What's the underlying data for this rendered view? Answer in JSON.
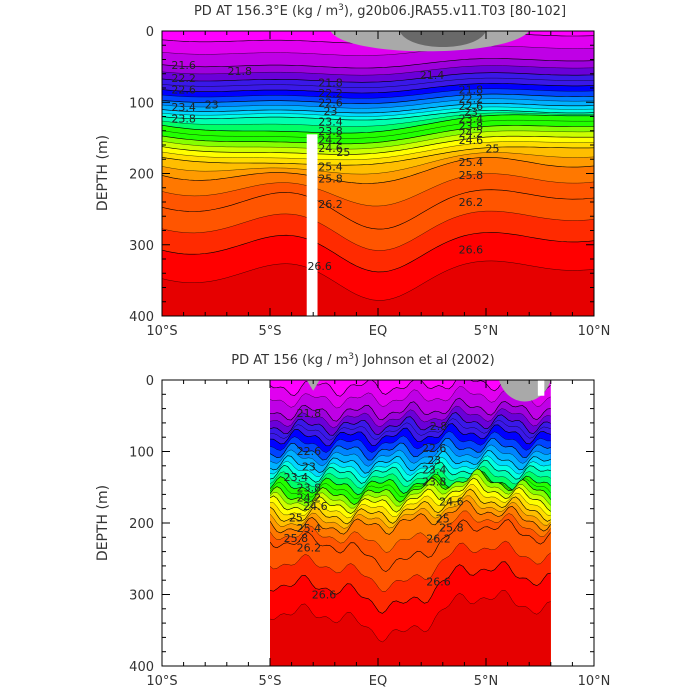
{
  "chart_data": [
    {
      "type": "heatmap",
      "title_main": "PD AT 156.3°E (kg / m",
      "title_sup": "3",
      "title_rest": "), g20b06.JRA55.v11.T03 [80-102]",
      "ylabel": "DEPTH (m)",
      "x_ticks": [
        "10°S",
        "5°S",
        "EQ",
        "5°N",
        "10°N"
      ],
      "y_ticks": [
        "0",
        "100",
        "200",
        "300",
        "400"
      ],
      "x_range": [
        -10,
        10
      ],
      "y_range": [
        0,
        400
      ],
      "y_inverted": true,
      "data_lat_range": [
        -10,
        10
      ],
      "masked_column_lat": [
        -3.3,
        -2.8
      ],
      "masked_column_depth_start": 145,
      "isopycnal_depths": [
        {
          "sigma": 21.4,
          "depth": 10
        },
        {
          "sigma": 21.8,
          "depth": 45
        },
        {
          "sigma": 22.2,
          "depth": 65
        },
        {
          "sigma": 22.6,
          "depth": 80
        },
        {
          "sigma": 23.0,
          "depth": 95
        },
        {
          "sigma": 23.4,
          "depth": 108
        },
        {
          "sigma": 23.8,
          "depth": 118
        },
        {
          "sigma": 24.2,
          "depth": 130
        },
        {
          "sigma": 24.6,
          "depth": 145
        },
        {
          "sigma": 25.0,
          "depth": 160
        },
        {
          "sigma": 25.4,
          "depth": 175
        },
        {
          "sigma": 25.8,
          "depth": 195
        },
        {
          "sigma": 26.2,
          "depth": 240
        },
        {
          "sigma": 26.6,
          "depth": 300
        }
      ],
      "contour_labels": [
        {
          "text": "21.4",
          "lat": 2.5,
          "depth": 62
        },
        {
          "text": "21.6",
          "lat": -9.0,
          "depth": 48
        },
        {
          "text": "21.8",
          "lat": -6.4,
          "depth": 56
        },
        {
          "text": "21.8",
          "lat": -2.2,
          "depth": 72
        },
        {
          "text": "22.2",
          "lat": -9.0,
          "depth": 66
        },
        {
          "text": "22.2",
          "lat": -2.2,
          "depth": 87
        },
        {
          "text": "22.6",
          "lat": -9.0,
          "depth": 82
        },
        {
          "text": "22.6",
          "lat": -2.2,
          "depth": 100
        },
        {
          "text": "23",
          "lat": -7.7,
          "depth": 103
        },
        {
          "text": "23",
          "lat": -2.2,
          "depth": 112
        },
        {
          "text": "23.4",
          "lat": -9.0,
          "depth": 107
        },
        {
          "text": "23.4",
          "lat": -2.2,
          "depth": 127
        },
        {
          "text": "23.8",
          "lat": -9.0,
          "depth": 123
        },
        {
          "text": "23.8",
          "lat": -2.2,
          "depth": 140
        },
        {
          "text": "24.2",
          "lat": -2.2,
          "depth": 152
        },
        {
          "text": "24.6",
          "lat": -2.2,
          "depth": 164
        },
        {
          "text": "25",
          "lat": -1.6,
          "depth": 170
        },
        {
          "text": "25.4",
          "lat": -2.2,
          "depth": 190
        },
        {
          "text": "25.8",
          "lat": -2.2,
          "depth": 207
        },
        {
          "text": "26.2",
          "lat": -2.2,
          "depth": 243
        },
        {
          "text": "26.6",
          "lat": -2.7,
          "depth": 330
        },
        {
          "text": "21.8",
          "lat": 4.3,
          "depth": 82
        },
        {
          "text": "22.2",
          "lat": 4.3,
          "depth": 95
        },
        {
          "text": "22.6",
          "lat": 4.3,
          "depth": 105
        },
        {
          "text": "23",
          "lat": 4.3,
          "depth": 114
        },
        {
          "text": "23.4",
          "lat": 4.3,
          "depth": 123
        },
        {
          "text": "23.8",
          "lat": 4.3,
          "depth": 133
        },
        {
          "text": "24.2",
          "lat": 4.3,
          "depth": 143
        },
        {
          "text": "24.6",
          "lat": 4.3,
          "depth": 153
        },
        {
          "text": "25",
          "lat": 5.3,
          "depth": 165
        },
        {
          "text": "25.4",
          "lat": 4.3,
          "depth": 184
        },
        {
          "text": "25.8",
          "lat": 4.3,
          "depth": 202
        },
        {
          "text": "26.2",
          "lat": 4.3,
          "depth": 240
        },
        {
          "text": "26.6",
          "lat": 4.3,
          "depth": 307
        }
      ]
    },
    {
      "type": "heatmap",
      "title_main": "PD AT 156 (kg / m",
      "title_sup": "3",
      "title_rest": ") Johnson et al (2002)",
      "ylabel": "DEPTH (m)",
      "x_ticks": [
        "10°S",
        "5°S",
        "EQ",
        "5°N",
        "10°N"
      ],
      "y_ticks": [
        "0",
        "100",
        "200",
        "300",
        "400"
      ],
      "x_range": [
        -10,
        10
      ],
      "y_range": [
        0,
        400
      ],
      "y_inverted": true,
      "data_lat_range": [
        -5,
        8
      ],
      "isopycnal_depths": [
        {
          "sigma": 21.4,
          "depth": 10
        },
        {
          "sigma": 21.8,
          "depth": 45
        },
        {
          "sigma": 22.2,
          "depth": 65
        },
        {
          "sigma": 22.6,
          "depth": 80
        },
        {
          "sigma": 23.0,
          "depth": 100
        },
        {
          "sigma": 23.4,
          "depth": 118
        },
        {
          "sigma": 23.8,
          "depth": 132
        },
        {
          "sigma": 24.2,
          "depth": 148
        },
        {
          "sigma": 24.6,
          "depth": 162
        },
        {
          "sigma": 25.0,
          "depth": 175
        },
        {
          "sigma": 25.4,
          "depth": 190
        },
        {
          "sigma": 25.8,
          "depth": 205
        },
        {
          "sigma": 26.2,
          "depth": 225
        },
        {
          "sigma": 26.6,
          "depth": 285
        }
      ],
      "contour_labels": [
        {
          "text": "21.8",
          "lat": -3.2,
          "depth": 46
        },
        {
          "text": "22.6",
          "lat": -3.2,
          "depth": 99
        },
        {
          "text": "23",
          "lat": -3.2,
          "depth": 121
        },
        {
          "text": "23.4",
          "lat": -3.8,
          "depth": 136
        },
        {
          "text": "23.8",
          "lat": -3.2,
          "depth": 150
        },
        {
          "text": "24.2",
          "lat": -3.2,
          "depth": 164
        },
        {
          "text": "24.6",
          "lat": -2.9,
          "depth": 176
        },
        {
          "text": "25",
          "lat": -3.8,
          "depth": 192
        },
        {
          "text": "25.4",
          "lat": -3.2,
          "depth": 207
        },
        {
          "text": "25.8",
          "lat": -3.8,
          "depth": 221
        },
        {
          "text": "26.2",
          "lat": -3.2,
          "depth": 234
        },
        {
          "text": "26.6",
          "lat": -2.5,
          "depth": 300
        },
        {
          "text": "22.6",
          "lat": 2.6,
          "depth": 95
        },
        {
          "text": "23",
          "lat": 2.6,
          "depth": 112
        },
        {
          "text": "23.4",
          "lat": 2.6,
          "depth": 125
        },
        {
          "text": "23.8",
          "lat": 2.6,
          "depth": 142
        },
        {
          "text": "24.6",
          "lat": 3.4,
          "depth": 170
        },
        {
          "text": "25",
          "lat": 3.0,
          "depth": 194
        },
        {
          "text": "25.8",
          "lat": 3.4,
          "depth": 206
        },
        {
          "text": "26.2",
          "lat": 2.8,
          "depth": 222
        },
        {
          "text": "26.6",
          "lat": 2.8,
          "depth": 282
        },
        {
          "text": "2.8",
          "lat": 2.8,
          "depth": 64
        }
      ]
    }
  ],
  "colors": {
    "band_colors": [
      "#a8a8a8",
      "#ff00ff",
      "#e000f0",
      "#bf00e6",
      "#9e00dc",
      "#6a00d8",
      "#3a18e8",
      "#0000ff",
      "#0044ff",
      "#0084ff",
      "#00b0ff",
      "#00d8ff",
      "#00ffe4",
      "#00ffb0",
      "#00ff66",
      "#22ff00",
      "#86ff00",
      "#ccff00",
      "#ffff00",
      "#ffde00",
      "#ffbe00",
      "#ff9b00",
      "#ff7800",
      "#ff5500",
      "#ff2a00",
      "#ff0000",
      "#e60000",
      "#cc0000"
    ],
    "contour_line": "#000000",
    "frame": "#000000",
    "gray_patch": "#a9a9a9",
    "dark_patch": "#696969"
  }
}
